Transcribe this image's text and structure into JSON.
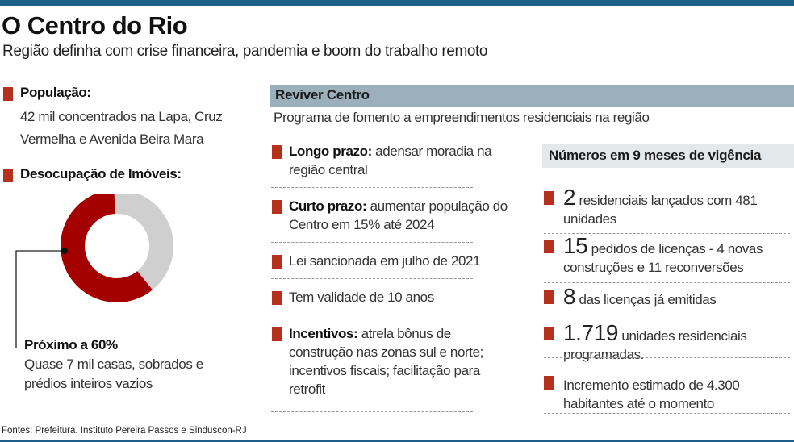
{
  "header": {
    "title": "O Centro do Rio",
    "subtitle": "Região definha com crise financeira, pandemia e boom do trabalho remoto"
  },
  "left": {
    "populacao": {
      "label": "População:",
      "text": "42 mil concentrados na Lapa, Cruz Vermelha e Avenida Beira Mara"
    },
    "desocupacao": {
      "label": "Desocupação de Imóveis:",
      "highlight": "Próximo a 60%",
      "text": "Quase 7 mil casas, sobrados e prédios inteiros vazios"
    },
    "donut": {
      "vacant_percent": 60,
      "colors": {
        "vacant": "#a50000",
        "other": "#cfcfcf"
      }
    }
  },
  "reviver": {
    "title": "Reviver Centro",
    "subtitle": "Programa de fomento a empreendimentos residenciais na região",
    "items": [
      {
        "label": "Longo prazo:",
        "text": " adensar moradia na região central"
      },
      {
        "label": "Curto prazo:",
        "text": " aumentar população do Centro em 15% até 2024"
      },
      {
        "label": "",
        "text": "Lei sancionada em julho de 2021"
      },
      {
        "label": "",
        "text": "Tem validade de 10 anos"
      },
      {
        "label": "Incentivos:",
        "text": " atrela bônus de construção nas zonas sul e norte; incentivos fiscais; facilitação para retrofit"
      }
    ]
  },
  "numeros": {
    "title": "Números em 9 meses de vigência",
    "items": [
      {
        "number": "2",
        "text": " residenciais lançados com 481 unidades"
      },
      {
        "number": "15",
        "text": " pedidos de licenças - 4 novas construções e 11 reconversões"
      },
      {
        "number": "8",
        "text": " das licenças já emitidas"
      },
      {
        "number": "1.719",
        "text": " unidades residenciais programadas."
      },
      {
        "number": "",
        "text": "Incremento estimado de 4.300 habitantes até o momento"
      }
    ]
  },
  "source": "Fontes: Prefeitura. Instituto Pereira Passos e Sinduscon-RJ",
  "colors": {
    "brand_blue": "#1d5f86",
    "bullet_red": "#b5311e",
    "band_gray": "#9cb0bb"
  }
}
